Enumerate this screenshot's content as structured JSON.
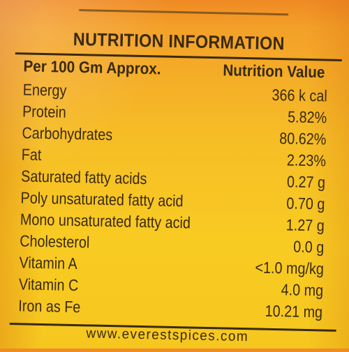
{
  "label": {
    "title": "NUTRITION INFORMATION",
    "column_left": "Per 100 Gm Approx.",
    "column_right": "Nutrition Value",
    "rows": [
      {
        "nutrient": "Energy",
        "value": "366 k cal"
      },
      {
        "nutrient": "Protein",
        "value": "5.82%"
      },
      {
        "nutrient": "Carbohydrates",
        "value": "80.62%"
      },
      {
        "nutrient": "Fat",
        "value": "2.23%"
      },
      {
        "nutrient": "Saturated fatty acids",
        "value": "0.27 g"
      },
      {
        "nutrient": "Poly unsaturated fatty acid",
        "value": "0.70 g"
      },
      {
        "nutrient": "Mono unsaturated fatty acid",
        "value": "1.27 g"
      },
      {
        "nutrient": "Cholesterol",
        "value": "0.0 g"
      },
      {
        "nutrient": "Vitamin A",
        "value": "<1.0 mg/kg"
      },
      {
        "nutrient": "Vitamin C",
        "value": "4.0 mg"
      },
      {
        "nutrient": "Iron as Fe",
        "value": "10.21 mg"
      }
    ],
    "website": "www.everestspices.com"
  },
  "colors": {
    "ink": "#3a2a10",
    "background_top": "#f08a24",
    "background_bottom": "#f6c71f"
  }
}
